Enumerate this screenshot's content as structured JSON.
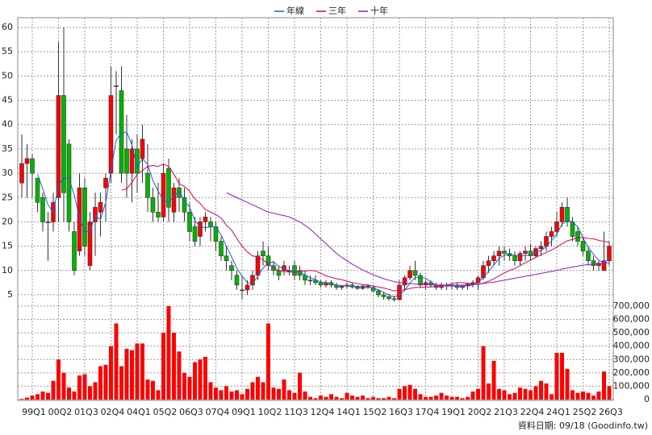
{
  "chart_data": {
    "type": "candlestick",
    "grid": true,
    "legend": "top",
    "up_color": "#ff0000",
    "down_color": "#00b400",
    "categories": [
      null,
      null,
      "99Q1",
      null,
      null,
      null,
      null,
      "00Q2",
      null,
      null,
      null,
      null,
      "01Q3",
      null,
      null,
      null,
      null,
      "02Q4",
      null,
      null,
      null,
      null,
      "04Q1",
      null,
      null,
      null,
      null,
      "05Q2",
      null,
      null,
      null,
      null,
      "06Q3",
      null,
      null,
      null,
      null,
      "07Q4",
      null,
      null,
      null,
      null,
      "09Q1",
      null,
      null,
      null,
      null,
      "10Q2",
      null,
      null,
      null,
      null,
      "11Q3",
      null,
      null,
      null,
      null,
      "12Q4",
      null,
      null,
      null,
      null,
      "14Q1",
      null,
      null,
      null,
      null,
      "15Q2",
      null,
      null,
      null,
      null,
      "16Q3",
      null,
      null,
      null,
      null,
      "17Q4",
      null,
      null,
      null,
      null,
      "19Q1",
      null,
      null,
      null,
      null,
      "20Q2",
      null,
      null,
      null,
      null,
      "21Q3",
      null,
      null,
      null,
      null,
      "22Q4",
      null,
      null,
      null,
      null,
      "24Q1",
      null,
      null,
      null,
      null,
      "25Q2",
      null,
      null,
      null,
      null,
      "26Q3"
    ],
    "open": [
      28,
      32,
      33,
      29,
      25,
      20,
      20,
      25,
      46,
      36,
      18,
      14,
      27,
      11,
      20,
      22,
      27,
      30,
      48,
      47,
      35,
      30,
      35,
      33,
      30,
      25,
      22,
      21,
      31,
      22,
      27,
      25,
      22,
      19,
      17,
      20,
      20,
      19,
      16,
      13,
      11,
      9,
      6,
      6,
      7,
      9,
      14,
      13,
      11,
      10,
      10,
      10,
      11,
      10,
      9,
      8,
      8,
      7.5,
      7,
      7.5,
      7,
      6.5,
      6.8,
      7,
      6.6,
      6.3,
      6.8,
      6.5,
      5.8,
      5,
      4.6,
      4.2,
      4,
      7,
      8.5,
      10,
      9,
      7,
      7.5,
      7,
      6.5,
      7,
      6.8,
      7,
      6.5,
      6.8,
      7.2,
      7.5,
      8.5,
      11,
      12,
      13,
      14,
      13.5,
      13,
      12,
      13.5,
      14,
      13,
      14.5,
      15,
      17,
      18,
      20,
      23,
      20,
      18,
      16,
      14,
      12,
      11,
      10,
      12
    ],
    "high": [
      38,
      36,
      34,
      29,
      26,
      22,
      26,
      57,
      60,
      37,
      20,
      30,
      29,
      22,
      26,
      26,
      30,
      52,
      51,
      52,
      42,
      37,
      38,
      40,
      36,
      27,
      28,
      32,
      33,
      28,
      29,
      27,
      24,
      21,
      21,
      22,
      21,
      20,
      17,
      15,
      12,
      10,
      9,
      8,
      10,
      14,
      16,
      15,
      12,
      11,
      12,
      11,
      12,
      11,
      10,
      9,
      9,
      8,
      8,
      8,
      7.5,
      7,
      7.5,
      7.5,
      7,
      7,
      7.2,
      7,
      6.2,
      5.5,
      5.2,
      4.8,
      8,
      9,
      11,
      12,
      9.5,
      8,
      8,
      7.5,
      7.5,
      7.5,
      7.5,
      7.5,
      7,
      7.5,
      8,
      9,
      12,
      13,
      14,
      15,
      15,
      14.5,
      14,
      14,
      15,
      15.5,
      15,
      16,
      18,
      19,
      22,
      24,
      25,
      21,
      19,
      17,
      15,
      13,
      12,
      18,
      16
    ],
    "low": [
      25,
      25,
      25,
      22,
      18,
      12,
      18,
      20,
      20,
      18,
      9,
      13,
      13,
      10,
      13,
      17,
      20,
      28,
      38,
      28,
      25,
      24,
      26,
      28,
      22,
      20,
      20,
      20,
      20,
      20,
      22,
      20,
      16,
      15,
      15,
      18,
      16,
      14,
      12,
      10,
      8,
      6,
      4,
      5,
      6,
      8,
      11,
      10,
      9,
      8,
      9,
      9,
      8,
      8,
      7,
      7,
      7,
      6.5,
      6.5,
      6.5,
      6,
      6,
      6.3,
      6.3,
      6,
      6,
      6.2,
      5.5,
      4.5,
      4,
      3.8,
      3.6,
      3.8,
      6,
      8,
      8,
      6.5,
      6,
      6.5,
      6,
      6,
      6,
      6,
      6,
      6,
      6,
      6.5,
      6,
      8,
      9.5,
      11,
      11,
      12,
      12,
      11,
      11,
      12,
      12,
      12.5,
      13,
      14,
      15,
      17,
      19,
      19,
      16,
      15,
      13,
      11,
      10,
      10,
      10,
      11
    ],
    "close": [
      32,
      33,
      30,
      24,
      20,
      20,
      24,
      46,
      26,
      20,
      10,
      27,
      15,
      20,
      23,
      24,
      29,
      46,
      48,
      30,
      30,
      35,
      30,
      37,
      25,
      22,
      21,
      30,
      23,
      27,
      25,
      22,
      18,
      16,
      20,
      21,
      19,
      16,
      13,
      12,
      10,
      7,
      6,
      7,
      9,
      13,
      13,
      11,
      10,
      9,
      11,
      10,
      9,
      9,
      8,
      8,
      7.5,
      7,
      7.5,
      7,
      6.5,
      6.8,
      7,
      6.6,
      6.3,
      6.8,
      6.5,
      5.8,
      5,
      4.6,
      4.2,
      4,
      7,
      8.5,
      10,
      9,
      7,
      7.5,
      7,
      6.5,
      7,
      6.8,
      7,
      6.5,
      6.8,
      7.2,
      7.5,
      8.5,
      11,
      12,
      13,
      14,
      13.5,
      13,
      12,
      13.5,
      14,
      13,
      14.5,
      15,
      17,
      18,
      20,
      23,
      20,
      17,
      16,
      14,
      12,
      11,
      11.5,
      12,
      15
    ],
    "volume": {
      "axis": "y2",
      "color": "#ff0000",
      "values": [
        5000,
        15000,
        30000,
        40000,
        60000,
        50000,
        140000,
        300000,
        200000,
        90000,
        60000,
        180000,
        190000,
        100000,
        130000,
        250000,
        260000,
        400000,
        570000,
        250000,
        380000,
        370000,
        420000,
        420000,
        150000,
        140000,
        70000,
        500000,
        700000,
        500000,
        360000,
        200000,
        170000,
        280000,
        300000,
        320000,
        130000,
        90000,
        70000,
        100000,
        60000,
        70000,
        40000,
        80000,
        130000,
        170000,
        130000,
        570000,
        90000,
        80000,
        150000,
        70000,
        50000,
        200000,
        60000,
        20000,
        10000,
        30000,
        20000,
        40000,
        20000,
        10000,
        50000,
        30000,
        20000,
        30000,
        10000,
        20000,
        10000,
        10000,
        20000,
        10000,
        80000,
        100000,
        110000,
        80000,
        40000,
        20000,
        20000,
        30000,
        50000,
        30000,
        20000,
        20000,
        10000,
        20000,
        60000,
        80000,
        400000,
        120000,
        290000,
        80000,
        70000,
        40000,
        50000,
        90000,
        80000,
        70000,
        100000,
        140000,
        120000,
        40000,
        350000,
        350000,
        230000,
        70000,
        50000,
        60000,
        50000,
        30000,
        60000,
        210000,
        100000
      ]
    },
    "series": [
      {
        "name": "年線",
        "color": "#1f5fd0",
        "values": [
          null,
          null,
          null,
          29.8,
          26.8,
          23.5,
          22,
          27.5,
          29,
          29,
          25.5,
          20.8,
          18,
          18,
          21.3,
          20.5,
          24,
          30.5,
          36.8,
          38.3,
          38.5,
          35.8,
          31.3,
          33,
          31.8,
          28.5,
          26.3,
          24.5,
          24,
          25.3,
          26.3,
          24.3,
          23,
          20.3,
          19,
          18.8,
          19,
          19,
          17.3,
          15,
          12.8,
          10.5,
          8.8,
          7.5,
          7.3,
          8.8,
          10.5,
          11.5,
          11.8,
          10.8,
          10.3,
          10,
          9.8,
          9.8,
          9,
          8.5,
          8.1,
          7.6,
          7.5,
          7.3,
          7,
          6.9,
          6.8,
          6.7,
          6.7,
          6.7,
          6.6,
          6.4,
          6,
          5.5,
          5,
          4.5,
          5,
          5.9,
          7.4,
          8.6,
          8.6,
          8.4,
          7.6,
          7,
          7,
          6.8,
          6.8,
          6.8,
          6.8,
          6.9,
          7,
          7.5,
          8.6,
          9.8,
          11.1,
          12.5,
          13.1,
          13.4,
          13.1,
          13,
          13.1,
          13.1,
          13.8,
          14.1,
          14.9,
          16.1,
          17.5,
          19.5,
          20.3,
          20,
          19,
          16.8,
          14.8,
          13.3,
          12.1,
          11.6,
          12.4
        ]
      },
      {
        "name": "三年",
        "color": "#e0005a",
        "values": [
          null,
          null,
          null,
          null,
          null,
          null,
          null,
          null,
          null,
          null,
          null,
          null,
          null,
          null,
          null,
          null,
          null,
          null,
          null,
          26.5,
          26.8,
          28.1,
          29.8,
          30.6,
          31.4,
          31.6,
          31.4,
          31.9,
          31.4,
          29.8,
          27.9,
          27.3,
          26.3,
          24.7,
          23.8,
          22.5,
          22,
          21.5,
          20.8,
          19.3,
          18.3,
          16.6,
          15,
          13.8,
          13,
          12.8,
          12.2,
          11.3,
          10.6,
          10,
          9.8,
          9.7,
          9.6,
          9.8,
          9.9,
          10,
          9.9,
          9.4,
          8.9,
          8.6,
          8.3,
          8.1,
          7.8,
          7.5,
          7.3,
          7.1,
          7,
          6.8,
          6.6,
          6.4,
          6.1,
          5.8,
          5.9,
          6,
          6.3,
          6.5,
          6.5,
          6.6,
          6.6,
          6.7,
          6.9,
          7,
          7.3,
          7.5,
          7.5,
          7.4,
          7.2,
          7.1,
          7.4,
          7.8,
          8.3,
          8.9,
          9.5,
          10,
          10.4,
          11,
          11.6,
          12.1,
          12.7,
          13.2,
          13.7,
          14.2,
          14.8,
          15.5,
          16.1,
          16.4,
          16.8,
          16.8,
          16.6,
          16.5,
          16.2,
          16,
          15.8
        ]
      },
      {
        "name": "十年",
        "color": "#8a1ad0",
        "values": [
          null,
          null,
          null,
          null,
          null,
          null,
          null,
          null,
          null,
          null,
          null,
          null,
          null,
          null,
          null,
          null,
          null,
          null,
          null,
          null,
          null,
          null,
          null,
          null,
          null,
          null,
          null,
          null,
          null,
          null,
          null,
          null,
          null,
          null,
          null,
          null,
          null,
          null,
          null,
          26,
          25.5,
          25,
          24.5,
          24,
          23.5,
          23,
          22.5,
          22,
          21.8,
          21.5,
          21.3,
          21,
          20.5,
          20,
          19.3,
          18.5,
          17.5,
          16.5,
          15.5,
          14.5,
          13.5,
          12.7,
          12,
          11.3,
          10.7,
          10.1,
          9.6,
          9.1,
          8.7,
          8.3,
          8,
          7.7,
          7.5,
          7.4,
          7.3,
          7.2,
          7.2,
          7.1,
          7.1,
          7,
          7,
          7,
          7,
          7,
          7,
          7,
          7.1,
          7.2,
          7.3,
          7.5,
          7.6,
          7.8,
          8,
          8.2,
          8.4,
          8.6,
          8.8,
          9,
          9.2,
          9.4,
          9.6,
          9.8,
          10,
          10.3,
          10.5,
          10.7,
          10.9,
          11.1,
          11.2,
          11.3,
          11.4,
          11.5,
          11.6
        ]
      }
    ],
    "ylim": [
      3,
      62
    ],
    "yticks": [
      5,
      10,
      15,
      20,
      25,
      30,
      35,
      40,
      45,
      50,
      55,
      60
    ],
    "y2lim": [
      0,
      700000
    ],
    "y2ticks": [
      0,
      {
        "value": 100000,
        "label": "100,000"
      },
      {
        "value": 200000,
        "label": "200,000"
      },
      {
        "value": 300000,
        "label": "300,000"
      },
      {
        "value": 400000,
        "label": "400,000"
      },
      {
        "value": 500000,
        "label": "500,000"
      },
      {
        "value": 600000,
        "label": "600,000"
      },
      {
        "value": 700000,
        "label": "700,000"
      }
    ],
    "footnote": "資料日期: 09/18 (Goodinfo.tw)"
  }
}
